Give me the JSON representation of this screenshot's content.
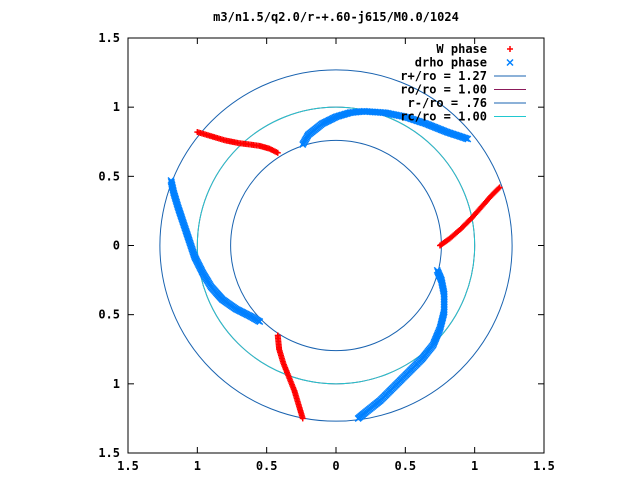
{
  "chart_data": {
    "type": "scatter",
    "title": "m3/n1.5/q2.0/r-+.60-j615/M0.0/1024",
    "xlabel": "",
    "ylabel": "",
    "xlim": [
      -1.5,
      1.5
    ],
    "ylim": [
      -1.5,
      1.5
    ],
    "x_tick_labels": [
      "1.5",
      "1",
      "0.5",
      "0",
      "0.5",
      "1",
      "1.5"
    ],
    "x_tick_values": [
      -1.5,
      -1.0,
      -0.5,
      0.0,
      0.5,
      1.0,
      1.5
    ],
    "y_tick_labels": [
      "1.5",
      "1",
      "0.5",
      "0",
      "0.5",
      "1",
      "1.5"
    ],
    "y_tick_values": [
      1.5,
      1.0,
      0.5,
      0.0,
      -0.5,
      -1.0,
      -1.5
    ],
    "grid": false,
    "legend_position": "top-right",
    "legend": [
      {
        "label": "W phase",
        "marker": "+",
        "color": "#ff0000"
      },
      {
        "label": "drho phase",
        "marker": "x",
        "color": "#0080ff"
      },
      {
        "label": "r+/ro = 1.27",
        "marker": "line",
        "color": "#1a63b0"
      },
      {
        "label": "ro/ro = 1.00",
        "marker": "line",
        "color": "#8b1a5a"
      },
      {
        "label": "r-/ro = .76",
        "marker": "line",
        "color": "#1a63b0"
      },
      {
        "label": "rc/ro = 1.00",
        "marker": "line",
        "color": "#20c8d0"
      }
    ],
    "circles": [
      {
        "radius": 1.27,
        "color": "#1a63b0"
      },
      {
        "radius": 1.0,
        "color": "#8b1a5a"
      },
      {
        "radius": 0.76,
        "color": "#1a63b0"
      },
      {
        "radius": 1.0,
        "color": "#20c8d0"
      }
    ],
    "w_phase_series": [
      {
        "name": "W phase",
        "color": "#ff0000",
        "points": [
          [
            -1.0,
            0.82
          ],
          [
            -0.9,
            0.79
          ],
          [
            -0.8,
            0.76
          ],
          [
            -0.7,
            0.74
          ],
          [
            -0.62,
            0.73
          ],
          [
            -0.55,
            0.72
          ],
          [
            -0.48,
            0.7
          ],
          [
            -0.42,
            0.67
          ]
        ]
      },
      {
        "name": "W phase",
        "color": "#ff0000",
        "points": [
          [
            0.75,
            0.0
          ],
          [
            0.82,
            0.05
          ],
          [
            0.9,
            0.12
          ],
          [
            0.98,
            0.2
          ],
          [
            1.05,
            0.28
          ],
          [
            1.12,
            0.36
          ],
          [
            1.18,
            0.42
          ]
        ]
      },
      {
        "name": "W phase",
        "color": "#ff0000",
        "points": [
          [
            -0.42,
            -0.65
          ],
          [
            -0.41,
            -0.75
          ],
          [
            -0.38,
            -0.85
          ],
          [
            -0.34,
            -0.95
          ],
          [
            -0.3,
            -1.05
          ],
          [
            -0.27,
            -1.15
          ],
          [
            -0.24,
            -1.25
          ]
        ]
      }
    ],
    "drho_phase_series": [
      {
        "name": "drho phase",
        "color": "#0080ff",
        "points": [
          [
            -0.24,
            0.73
          ],
          [
            -0.2,
            0.8
          ],
          [
            -0.1,
            0.88
          ],
          [
            0.0,
            0.93
          ],
          [
            0.1,
            0.96
          ],
          [
            0.2,
            0.97
          ],
          [
            0.35,
            0.96
          ],
          [
            0.5,
            0.93
          ],
          [
            0.65,
            0.88
          ],
          [
            0.8,
            0.82
          ],
          [
            0.95,
            0.77
          ]
        ]
      },
      {
        "name": "drho phase",
        "color": "#0080ff",
        "points": [
          [
            0.73,
            -0.18
          ],
          [
            0.76,
            -0.25
          ],
          [
            0.78,
            -0.35
          ],
          [
            0.78,
            -0.48
          ],
          [
            0.75,
            -0.6
          ],
          [
            0.7,
            -0.72
          ],
          [
            0.62,
            -0.82
          ],
          [
            0.52,
            -0.92
          ],
          [
            0.42,
            -1.02
          ],
          [
            0.32,
            -1.12
          ],
          [
            0.22,
            -1.2
          ],
          [
            0.16,
            -1.25
          ]
        ]
      },
      {
        "name": "drho phase",
        "color": "#0080ff",
        "points": [
          [
            -1.19,
            0.47
          ],
          [
            -1.17,
            0.38
          ],
          [
            -1.14,
            0.28
          ],
          [
            -1.1,
            0.16
          ],
          [
            -1.06,
            0.04
          ],
          [
            -1.02,
            -0.08
          ],
          [
            -0.96,
            -0.2
          ],
          [
            -0.9,
            -0.3
          ],
          [
            -0.82,
            -0.39
          ],
          [
            -0.72,
            -0.46
          ],
          [
            -0.62,
            -0.51
          ],
          [
            -0.55,
            -0.55
          ]
        ]
      }
    ]
  }
}
